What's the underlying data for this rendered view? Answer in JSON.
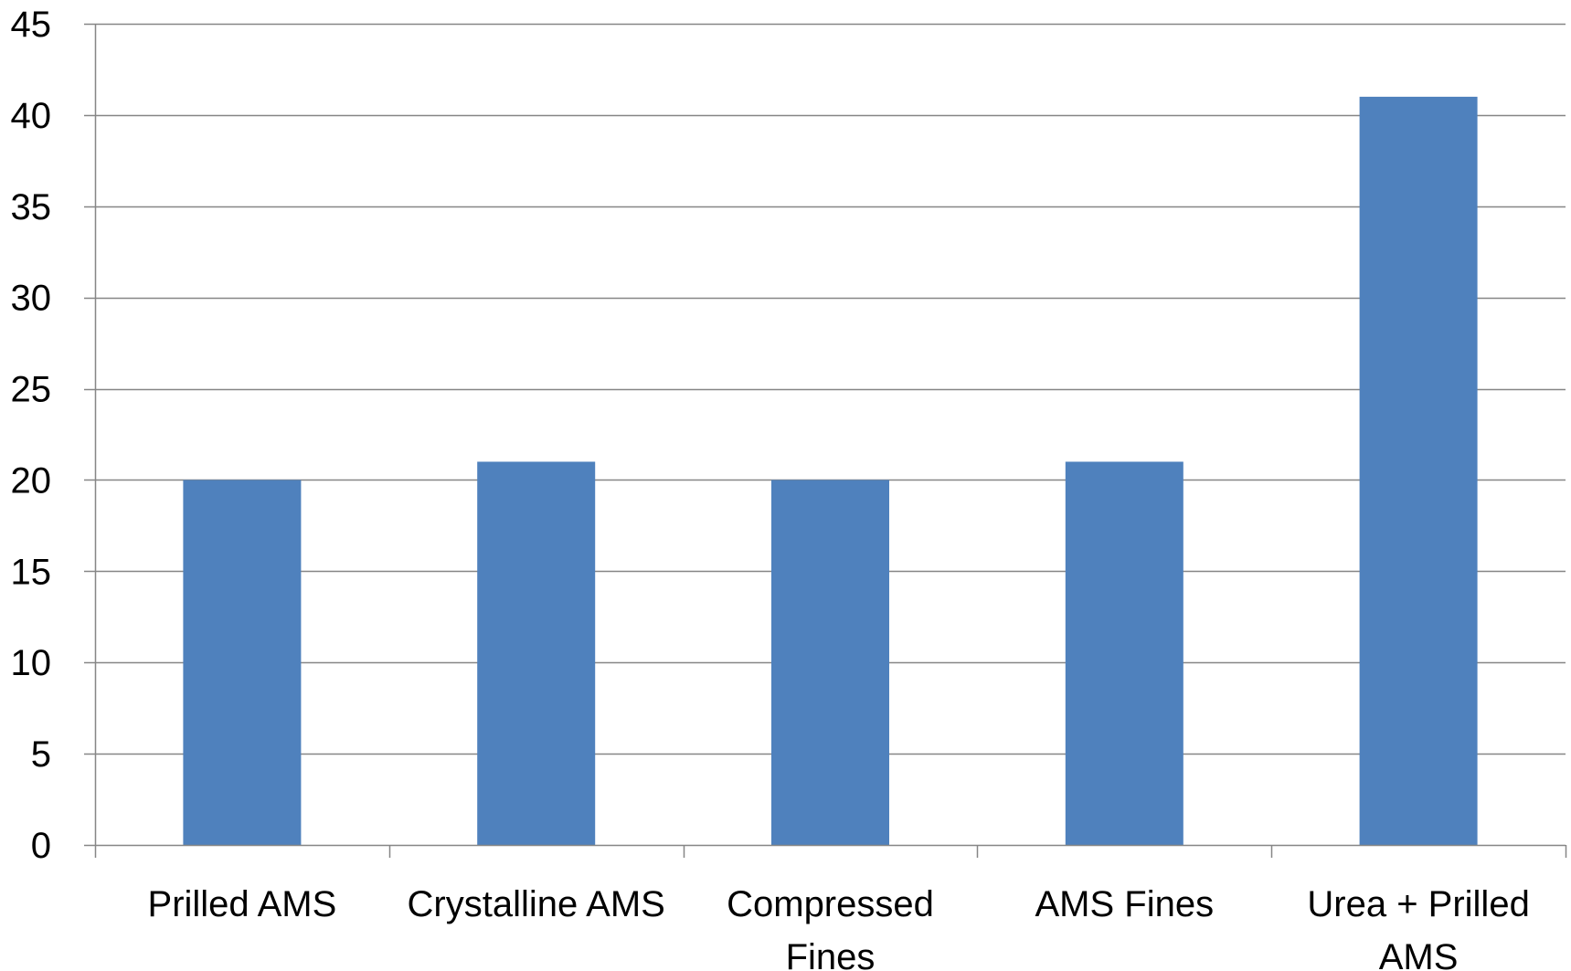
{
  "chart_data": {
    "type": "bar",
    "categories": [
      "Prilled AMS",
      "Crystalline AMS",
      "Compressed Fines",
      "AMS Fines",
      "Urea + Prilled AMS"
    ],
    "category_label_lines": [
      [
        "Prilled AMS"
      ],
      [
        "Crystalline AMS"
      ],
      [
        "Compressed",
        "Fines"
      ],
      [
        "AMS Fines"
      ],
      [
        "Urea + Prilled",
        "AMS"
      ]
    ],
    "values": [
      20,
      21,
      20,
      21,
      41
    ],
    "ylim": [
      0,
      45
    ],
    "yticks": [
      0,
      5,
      10,
      15,
      20,
      25,
      30,
      35,
      40,
      45
    ],
    "title": "",
    "xlabel": "",
    "ylabel": "",
    "grid": true,
    "legend": "none",
    "colors": {
      "bar": "#4F81BD",
      "grid": "#868686",
      "axis": "#868686",
      "text": "#000000"
    }
  }
}
